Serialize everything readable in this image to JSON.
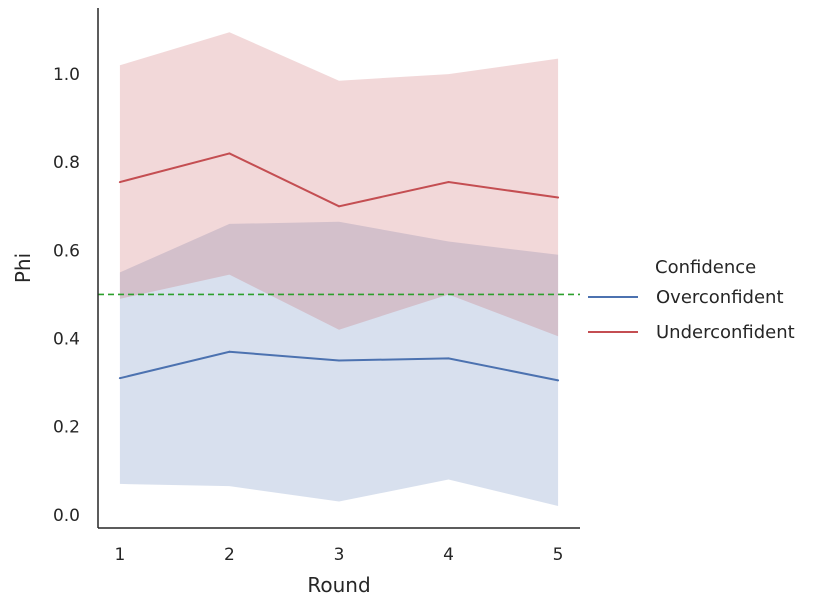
{
  "chart_data": {
    "type": "line",
    "xlabel": "Round",
    "ylabel": "Phi",
    "x": [
      1,
      2,
      3,
      4,
      5
    ],
    "xlim": [
      0.8,
      5.2
    ],
    "ylim": [
      -0.03,
      1.15
    ],
    "yticks": [
      0.0,
      0.2,
      0.4,
      0.6,
      0.8,
      1.0
    ],
    "ytick_labels": [
      "0.0",
      "0.2",
      "0.4",
      "0.6",
      "0.8",
      "1.0"
    ],
    "xtick_labels": [
      "1",
      "2",
      "3",
      "4",
      "5"
    ],
    "grid": false,
    "legend": {
      "title": "Confidence",
      "position": "right"
    },
    "series": [
      {
        "name": "Overconfident",
        "color": "#4c72b0",
        "fill": "#c7d3e8",
        "values": [
          0.31,
          0.37,
          0.35,
          0.355,
          0.305
        ],
        "lower": [
          0.07,
          0.065,
          0.03,
          0.08,
          0.02
        ],
        "upper": [
          0.55,
          0.66,
          0.665,
          0.62,
          0.59
        ]
      },
      {
        "name": "Underconfident",
        "color": "#c44e52",
        "fill": "#f0c8ca",
        "values": [
          0.755,
          0.82,
          0.7,
          0.755,
          0.72
        ],
        "lower": [
          0.49,
          0.545,
          0.42,
          0.5,
          0.405
        ],
        "upper": [
          1.02,
          1.095,
          0.985,
          1.0,
          1.035
        ]
      }
    ],
    "reference_line": {
      "y": 0.5,
      "color": "#2ca02c",
      "style": "dashed"
    }
  }
}
